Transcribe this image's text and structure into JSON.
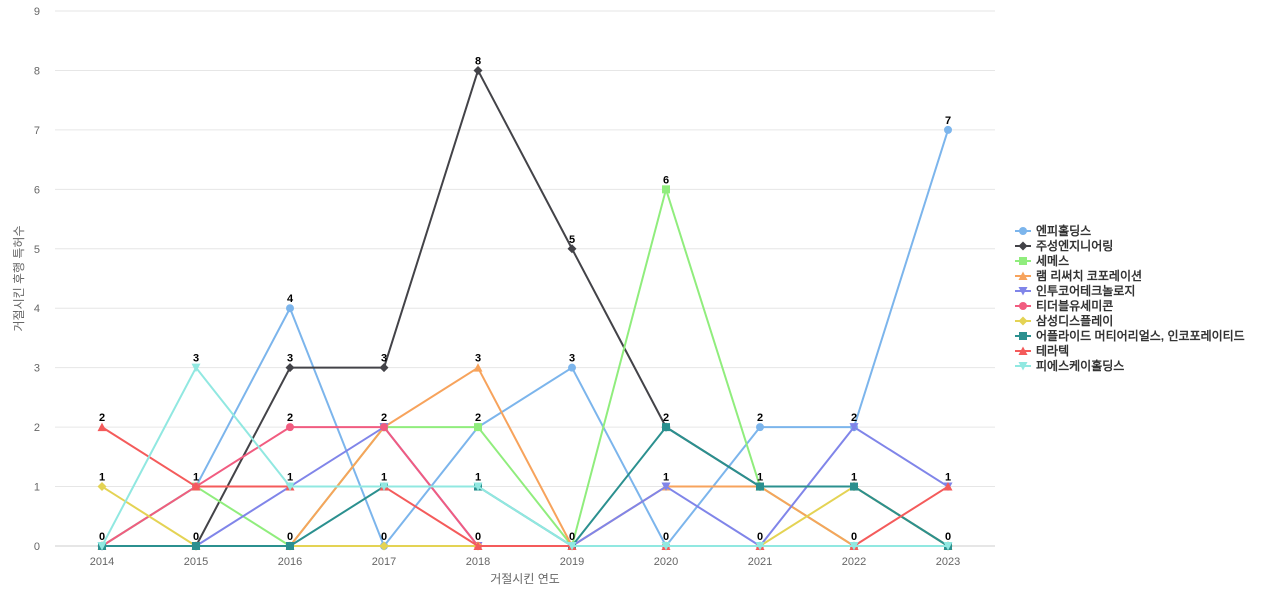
{
  "chart_data": {
    "type": "line",
    "xlabel": "거절시킨 연도",
    "ylabel": "거절시킨 후행 특허수",
    "ylim": [
      0,
      9
    ],
    "grid": true,
    "legend_position": "right",
    "categories": [
      "2014",
      "2015",
      "2016",
      "2017",
      "2018",
      "2019",
      "2020",
      "2021",
      "2022",
      "2023"
    ],
    "series": [
      {
        "name": "엔피홀딩스",
        "color": "#7cb5ec",
        "marker": "circle",
        "values": [
          0,
          1,
          4,
          0,
          2,
          3,
          0,
          2,
          2,
          7
        ]
      },
      {
        "name": "주성엔지니어링",
        "color": "#434348",
        "marker": "diamond",
        "values": [
          0,
          0,
          3,
          3,
          8,
          5,
          2,
          1,
          1,
          0
        ]
      },
      {
        "name": "세메스",
        "color": "#90ed7d",
        "marker": "square",
        "values": [
          0,
          1,
          0,
          2,
          2,
          0,
          6,
          1,
          0,
          0
        ]
      },
      {
        "name": "램 리써치 코포레이션",
        "color": "#f7a35c",
        "marker": "triangle",
        "values": [
          0,
          0,
          0,
          2,
          3,
          0,
          1,
          1,
          0,
          0
        ]
      },
      {
        "name": "인투코어테크놀로지",
        "color": "#8085e9",
        "marker": "triangle-down",
        "values": [
          0,
          0,
          1,
          2,
          0,
          0,
          1,
          0,
          2,
          1
        ]
      },
      {
        "name": "티더블유세미콘",
        "color": "#f15c80",
        "marker": "circle",
        "values": [
          0,
          1,
          2,
          2,
          0,
          0,
          0,
          0,
          0,
          0
        ]
      },
      {
        "name": "삼성디스플레이",
        "color": "#e4d354",
        "marker": "diamond",
        "values": [
          1,
          0,
          0,
          0,
          0,
          0,
          0,
          0,
          1,
          0
        ]
      },
      {
        "name": "어플라이드 머티어리얼스, 인코포레이티드",
        "color": "#2b908f",
        "marker": "square",
        "values": [
          0,
          0,
          0,
          1,
          1,
          0,
          2,
          1,
          1,
          0
        ]
      },
      {
        "name": "테라텍",
        "color": "#f45b5b",
        "marker": "triangle",
        "values": [
          2,
          1,
          1,
          1,
          0,
          0,
          0,
          0,
          0,
          1
        ]
      },
      {
        "name": "피에스케이홀딩스",
        "color": "#91e8e1",
        "marker": "triangle-down",
        "values": [
          0,
          3,
          1,
          1,
          1,
          0,
          0,
          0,
          0,
          0
        ]
      }
    ],
    "data_labels": [
      {
        "category": "2014",
        "texts": [
          "2",
          "1",
          "0"
        ],
        "values": [
          2,
          1,
          0
        ]
      },
      {
        "category": "2015",
        "texts": [
          "3",
          "1",
          "0"
        ],
        "values": [
          3,
          1,
          0
        ]
      },
      {
        "category": "2016",
        "texts": [
          "4",
          "3",
          "2",
          "1",
          "0"
        ],
        "values": [
          4,
          3,
          2,
          1,
          0
        ]
      },
      {
        "category": "2017",
        "texts": [
          "3",
          "2",
          "1",
          "0"
        ],
        "values": [
          3,
          2,
          1,
          0
        ]
      },
      {
        "category": "2018",
        "texts": [
          "8",
          "3",
          "2",
          "1",
          "0"
        ],
        "values": [
          8,
          3,
          2,
          1,
          0
        ]
      },
      {
        "category": "2019",
        "texts": [
          "5",
          "3",
          "0"
        ],
        "values": [
          5,
          3,
          0
        ]
      },
      {
        "category": "2020",
        "texts": [
          "6",
          "2",
          "1",
          "0"
        ],
        "values": [
          6,
          2,
          1,
          0
        ]
      },
      {
        "category": "2021",
        "texts": [
          "2",
          "1",
          "0"
        ],
        "values": [
          2,
          1,
          0
        ]
      },
      {
        "category": "2022",
        "texts": [
          "2",
          "1",
          "0"
        ],
        "values": [
          2,
          1,
          0
        ]
      },
      {
        "category": "2023",
        "texts": [
          "7",
          "1",
          "0"
        ],
        "values": [
          7,
          1,
          0
        ]
      }
    ]
  }
}
